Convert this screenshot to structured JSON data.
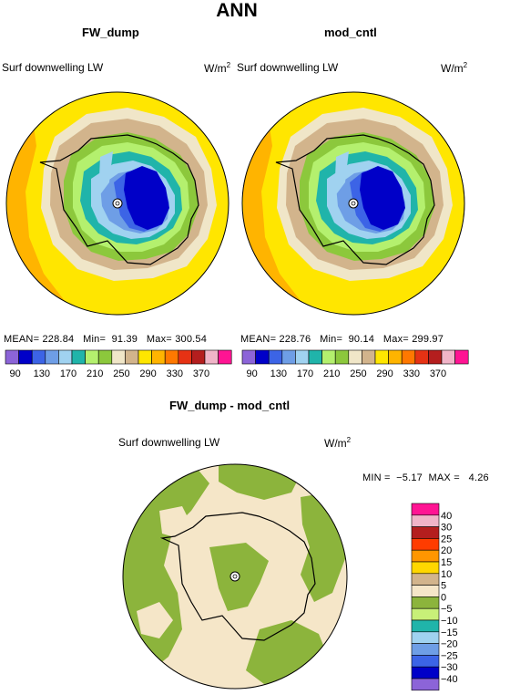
{
  "main_title": "ANN",
  "panels": [
    {
      "title": "FW_dump",
      "variable": "Surf downwelling LW",
      "units": "W/m",
      "units_exp": "2",
      "stats": {
        "mean_label": "MEAN=",
        "mean": "228.84",
        "min_label": "Min=",
        "min": "91.39",
        "max_label": "Max=",
        "max": "300.54"
      }
    },
    {
      "title": "mod_cntl",
      "variable": "Surf downwelling LW",
      "units": "W/m",
      "units_exp": "2",
      "stats": {
        "mean_label": "MEAN=",
        "mean": "228.76",
        "min_label": "Min=",
        "min": "90.14",
        "max_label": "Max=",
        "max": "299.97"
      }
    }
  ],
  "abs_colorbar": {
    "colors": [
      "#8c64d8",
      "#0000c8",
      "#3c64e6",
      "#6e9ee6",
      "#a0d2f0",
      "#20b4aa",
      "#b4f06e",
      "#8cc83c",
      "#f0e6c8",
      "#d2b48c",
      "#ffe600",
      "#ffb400",
      "#ff7800",
      "#e63214",
      "#b41e1e",
      "#f0b4c8",
      "#ff1493"
    ],
    "tick_labels": [
      "90",
      "130",
      "170",
      "210",
      "250",
      "290",
      "330",
      "370"
    ]
  },
  "diff": {
    "title": "FW_dump - mod_cntl",
    "variable": "Surf downwelling LW",
    "units": "W/m",
    "units_exp": "2",
    "min_label": "MIN =",
    "min": "−5.17",
    "max_label": "MAX =",
    "max": "4.26"
  },
  "diff_colorbar": {
    "colors": [
      "#ff1493",
      "#f0b4c8",
      "#b41e1e",
      "#ff3c00",
      "#ff9600",
      "#ffd700",
      "#d2b48c",
      "#f5e6c8",
      "#8cb43c",
      "#c8f078",
      "#20b4aa",
      "#a0d2f0",
      "#6e9ee6",
      "#3c64e6",
      "#0000c8",
      "#8c64d8"
    ],
    "tick_labels": [
      "40",
      "30",
      "25",
      "20",
      "15",
      "10",
      "5",
      "0",
      "−5",
      "−10",
      "−15",
      "−20",
      "−25",
      "−30",
      "−40"
    ]
  }
}
